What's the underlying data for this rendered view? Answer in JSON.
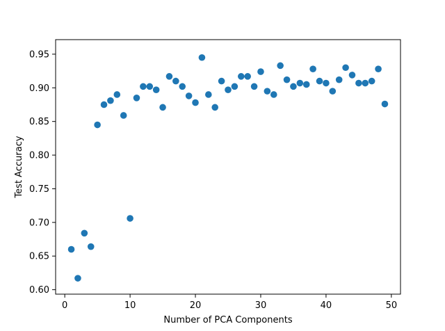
{
  "chart_data": {
    "type": "scatter",
    "title": "",
    "xlabel": "Number of PCA Components",
    "ylabel": "Test Accuracy",
    "xlim": [
      -1.4,
      51.4
    ],
    "ylim": [
      0.5934,
      0.9716
    ],
    "xticks": [
      0,
      10,
      20,
      30,
      40,
      50
    ],
    "yticks": [
      0.6,
      0.65,
      0.7,
      0.75,
      0.8,
      0.85,
      0.9,
      0.95
    ],
    "grid": false,
    "legend": "none",
    "marker_color": "#1f77b4",
    "x": [
      1,
      2,
      3,
      4,
      5,
      6,
      7,
      8,
      9,
      10,
      11,
      12,
      13,
      14,
      15,
      16,
      17,
      18,
      19,
      20,
      21,
      22,
      23,
      24,
      25,
      26,
      27,
      28,
      29,
      30,
      31,
      32,
      33,
      34,
      35,
      36,
      37,
      38,
      39,
      40,
      41,
      42,
      43,
      44,
      45,
      46,
      47,
      48,
      49
    ],
    "y": [
      0.66,
      0.617,
      0.684,
      0.664,
      0.845,
      0.875,
      0.881,
      0.89,
      0.859,
      0.706,
      0.885,
      0.902,
      0.902,
      0.897,
      0.871,
      0.917,
      0.91,
      0.902,
      0.888,
      0.878,
      0.945,
      0.89,
      0.871,
      0.91,
      0.897,
      0.902,
      0.917,
      0.917,
      0.902,
      0.924,
      0.895,
      0.89,
      0.933,
      0.912,
      0.902,
      0.907,
      0.905,
      0.928,
      0.91,
      0.907,
      0.895,
      0.912,
      0.93,
      0.919,
      0.907,
      0.907,
      0.91,
      0.928,
      0.876
    ]
  }
}
